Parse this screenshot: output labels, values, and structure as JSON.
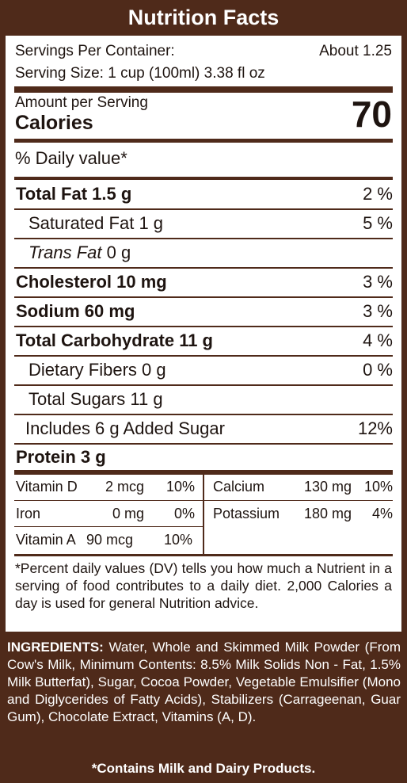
{
  "title": "Nutrition Facts",
  "servings": {
    "per_container_label": "Servings Per Container:",
    "per_container_value": "About 1.25",
    "serving_size": "Serving Size: 1 cup (100ml) 3.38 fl oz"
  },
  "calories": {
    "amount_label": "Amount per Serving",
    "label": "Calories",
    "value": "70"
  },
  "daily_value_header": "% Daily value*",
  "nutrients": [
    {
      "name": "Total Fat",
      "amount": "1.5 g",
      "dv": "2 %"
    },
    {
      "name": "Saturated Fat",
      "amount": "1 g",
      "dv": "5 %"
    },
    {
      "name": "Trans Fat",
      "amount": "0 g",
      "dv": ""
    },
    {
      "name": "Cholesterol",
      "amount": "10 mg",
      "dv": "3 %"
    },
    {
      "name": "Sodium",
      "amount": "60 mg",
      "dv": "3 %"
    },
    {
      "name": "Total Carbohydrate",
      "amount": "11 g",
      "dv": "4 %"
    },
    {
      "name": "Dietary Fibers",
      "amount": "0 g",
      "dv": "0 %"
    },
    {
      "name": "Total Sugars",
      "amount": "11 g",
      "dv": ""
    },
    {
      "name": "Includes 6 g Added Sugar",
      "amount": "",
      "dv": "12%"
    },
    {
      "name": "Protein",
      "amount": "3 g",
      "dv": ""
    }
  ],
  "vitamins": [
    {
      "name": "Vitamin D",
      "amount": "2 mcg",
      "dv": "10%"
    },
    {
      "name": "Calcium",
      "amount": "130 mg",
      "dv": "10%"
    },
    {
      "name": "Iron",
      "amount": "0 mg",
      "dv": "0%"
    },
    {
      "name": "Potassium",
      "amount": "180 mg",
      "dv": "4%"
    },
    {
      "name": "Vitamin A",
      "amount": "90 mcg",
      "dv": "10%"
    }
  ],
  "footnote": "*Percent daily values (DV) tells you how much a Nutrient in a serving of food contributes to a daily diet. 2,000 Calories a day is used for general Nutrition advice.",
  "ingredients": {
    "label": "INGREDIENTS:",
    "text": "Water, Whole and Skimmed Milk Powder (From Cow's Milk, Minimum Contents: 8.5% Milk Solids Non - Fat, 1.5% Milk Butterfat),  Sugar, Cocoa Powder, Vegetable Emulsifier (Mono and Diglycerides of Fatty Acids), Stabilizers (Carrageenan, Guar Gum), Chocolate Extract, Vitamins (A, D)."
  },
  "allergen_notice": "*Contains Milk and Dairy Products."
}
